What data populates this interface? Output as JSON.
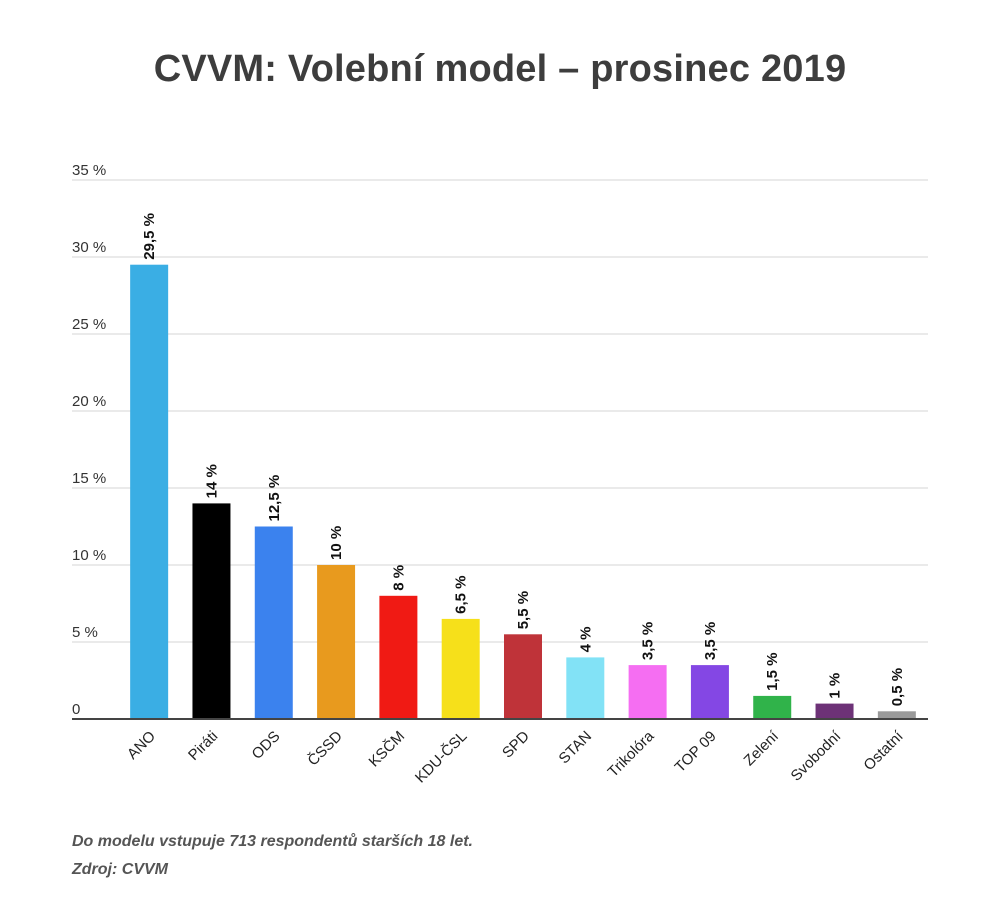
{
  "chart_data": {
    "type": "bar",
    "title": "CVVM: Volební model – prosinec 2019",
    "categories": [
      "ANO",
      "Piráti",
      "ODS",
      "ČSSD",
      "KSČM",
      "KDU-ČSL",
      "SPD",
      "STAN",
      "Trikolóra",
      "TOP 09",
      "Zelení",
      "Svobodní",
      "Ostatní"
    ],
    "values": [
      29.5,
      14,
      12.5,
      10,
      8,
      6.5,
      5.5,
      4,
      3.5,
      3.5,
      1.5,
      1,
      0.5
    ],
    "data_labels": [
      "29,5 %",
      "14 %",
      "12,5 %",
      "10 %",
      "8 %",
      "6,5 %",
      "5,5 %",
      "4 %",
      "3,5 %",
      "3,5 %",
      "1,5 %",
      "1 %",
      "0,5 %"
    ],
    "colors": [
      "#3aaee4",
      "#000000",
      "#3b82ee",
      "#e89a1e",
      "#f01a14",
      "#f6e01a",
      "#bf3339",
      "#82e2f6",
      "#f56ef2",
      "#8447e4",
      "#30b34a",
      "#6d3277",
      "#9a9a9a"
    ],
    "yticks": [
      0,
      5,
      10,
      15,
      20,
      25,
      30,
      35
    ],
    "ytick_labels": [
      "0",
      "5 %",
      "10 %",
      "15 %",
      "20 %",
      "25 %",
      "30 %",
      "35 %"
    ],
    "ylim": [
      0,
      35
    ],
    "xlabel": "",
    "ylabel": "",
    "grid": true,
    "legend": "none"
  },
  "footer": {
    "note": "Do modelu vstupuje 713 respondentů starších 18 let.",
    "source": "Zdroj: CVVM"
  }
}
